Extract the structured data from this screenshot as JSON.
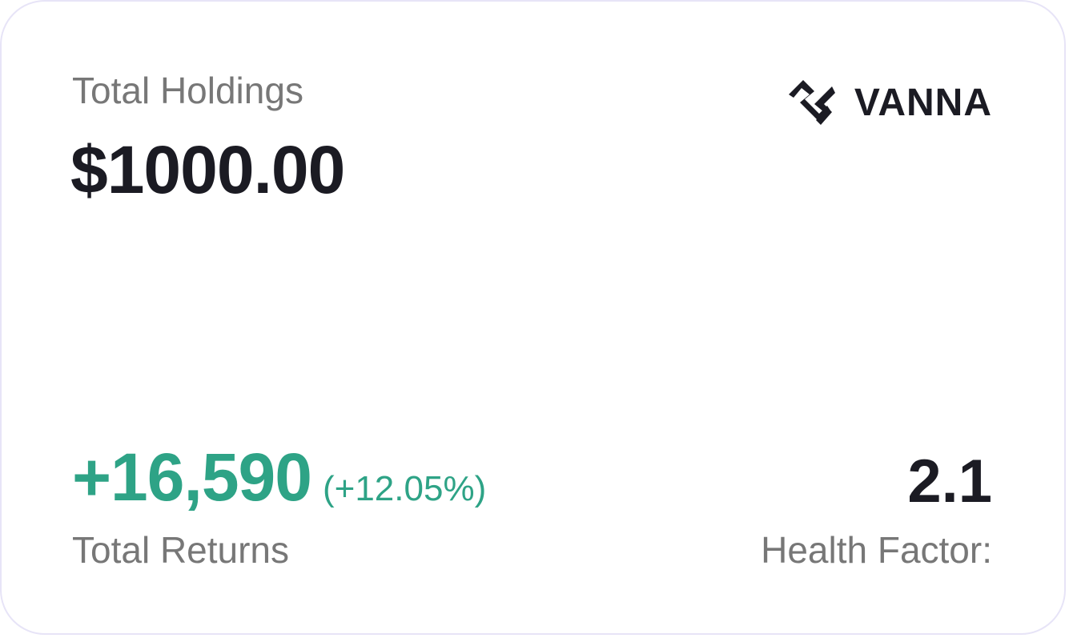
{
  "holdings": {
    "label": "Total Holdings",
    "value": "$1000.00"
  },
  "brand": {
    "name": "VANNA",
    "icon": "vanna-logo-icon"
  },
  "returns": {
    "value": "+16,590",
    "percent": "(+12.05%)",
    "label": "Total Returns"
  },
  "health": {
    "value": "2.1",
    "label": "Health Factor:"
  },
  "colors": {
    "primary_text": "#1b1b23",
    "secondary_text": "#777777",
    "positive": "#2ea386",
    "card_border": "#e7e4f7"
  }
}
